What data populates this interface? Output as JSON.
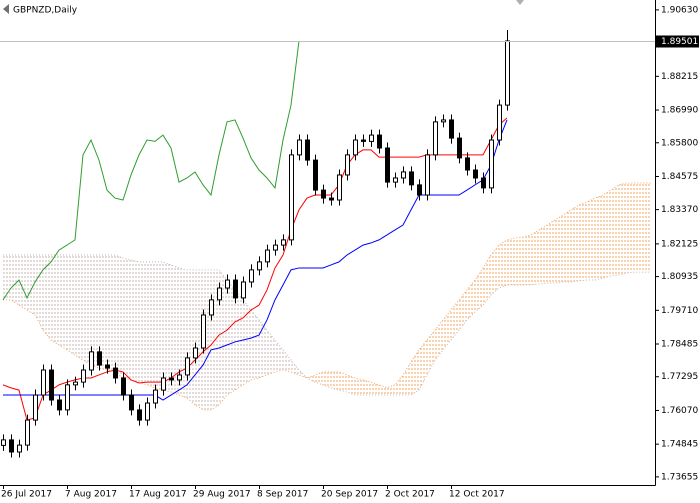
{
  "chart_data": {
    "type": "candlestick",
    "title": "GBPNZD,Daily",
    "categories": [
      "26 Jul 2017",
      null,
      null,
      null,
      null,
      null,
      null,
      null,
      "7 Aug 2017",
      null,
      null,
      null,
      null,
      null,
      null,
      null,
      "17 Aug 2017",
      null,
      null,
      null,
      null,
      null,
      null,
      null,
      "29 Aug 2017",
      null,
      null,
      null,
      null,
      null,
      null,
      null,
      "8 Sep 2017",
      null,
      null,
      null,
      null,
      null,
      null,
      null,
      "20 Sep 2017",
      null,
      null,
      null,
      null,
      null,
      null,
      null,
      "2 Oct 2017",
      null,
      null,
      null,
      null,
      null,
      null,
      null,
      "12 Oct 2017",
      null,
      null,
      null,
      null,
      null,
      null,
      null,
      null,
      null,
      null,
      null,
      null,
      null,
      null,
      null,
      null,
      null,
      null,
      null,
      null,
      null,
      null,
      null,
      null,
      null
    ],
    "open": [
      1.748,
      1.75,
      1.7456,
      1.7481,
      1.7572,
      1.7663,
      1.7754,
      1.7645,
      1.7609,
      1.77,
      1.771,
      1.7754,
      1.782,
      1.7772,
      1.7761,
      1.7725,
      1.7663,
      1.7609,
      1.7572,
      1.7634,
      1.7681,
      1.7725,
      1.7718,
      1.7736,
      1.7798,
      1.7834,
      1.7954,
      1.8009,
      1.8052,
      1.8081,
      1.8016,
      1.8074,
      1.8118,
      1.8147,
      1.819,
      1.8208,
      1.8227,
      1.8536,
      1.859,
      1.8517,
      1.8408,
      1.8379,
      1.8372,
      1.8463,
      1.8536,
      1.859,
      1.8585,
      1.8608,
      1.8561,
      1.8437,
      1.8452,
      1.8474,
      1.8427,
      1.839,
      1.8536,
      1.8656,
      1.8663,
      1.8597,
      1.8525,
      1.8481,
      1.8452,
      1.8416,
      1.859,
      1.8717,
      null,
      null,
      null,
      null,
      null,
      null,
      null,
      null,
      null,
      null,
      null,
      null,
      null,
      null,
      null,
      null,
      null,
      null
    ],
    "high": [
      1.752,
      1.752,
      1.7501,
      1.7592,
      1.7683,
      1.7774,
      1.7774,
      1.7665,
      1.772,
      1.773,
      1.7774,
      1.784,
      1.784,
      1.7792,
      1.7781,
      1.7745,
      1.7683,
      1.7629,
      1.7654,
      1.7701,
      1.7745,
      1.7745,
      1.7756,
      1.7818,
      1.7854,
      1.7974,
      1.8029,
      1.8072,
      1.8101,
      1.8101,
      1.8094,
      1.8138,
      1.8167,
      1.821,
      1.8228,
      1.8247,
      1.8556,
      1.861,
      1.861,
      1.8537,
      1.8428,
      1.8399,
      1.8483,
      1.8556,
      1.861,
      1.861,
      1.8628,
      1.8628,
      1.8581,
      1.8472,
      1.8494,
      1.8494,
      1.8447,
      1.8556,
      1.8676,
      1.8683,
      1.8683,
      1.8617,
      1.8545,
      1.8501,
      1.8472,
      1.861,
      1.8737,
      1.899,
      null,
      null,
      null,
      null,
      null,
      null,
      null,
      null,
      null,
      null,
      null,
      null,
      null,
      null,
      null,
      null,
      null,
      null
    ],
    "low": [
      1.746,
      1.7436,
      1.7436,
      1.7461,
      1.7552,
      1.7643,
      1.7625,
      1.7589,
      1.7589,
      1.768,
      1.769,
      1.7734,
      1.7752,
      1.7741,
      1.7705,
      1.7643,
      1.7589,
      1.7552,
      1.7552,
      1.7614,
      1.7661,
      1.7698,
      1.7698,
      1.7716,
      1.7778,
      1.7814,
      1.7934,
      1.7989,
      1.8032,
      1.7996,
      1.7996,
      1.8054,
      1.8098,
      1.8127,
      1.817,
      1.8188,
      1.8207,
      1.8516,
      1.8497,
      1.8388,
      1.8359,
      1.8352,
      1.8352,
      1.8443,
      1.8516,
      1.8565,
      1.8565,
      1.8541,
      1.8417,
      1.8417,
      1.8432,
      1.8407,
      1.837,
      1.837,
      1.8516,
      1.8636,
      1.8577,
      1.8505,
      1.8461,
      1.8432,
      1.8396,
      1.8396,
      1.857,
      1.8697,
      null,
      null,
      null,
      null,
      null,
      null,
      null,
      null,
      null,
      null,
      null,
      null,
      null,
      null,
      null,
      null,
      null,
      null
    ],
    "close": [
      1.75,
      1.7456,
      1.7481,
      1.7572,
      1.7663,
      1.7754,
      1.7645,
      1.7609,
      1.77,
      1.771,
      1.7754,
      1.782,
      1.7772,
      1.7761,
      1.7725,
      1.7663,
      1.7609,
      1.7572,
      1.7634,
      1.7681,
      1.7725,
      1.7718,
      1.7736,
      1.7798,
      1.7834,
      1.7954,
      1.8009,
      1.8052,
      1.8081,
      1.8016,
      1.8074,
      1.8118,
      1.8147,
      1.819,
      1.8208,
      1.8227,
      1.8536,
      1.859,
      1.8517,
      1.8408,
      1.8379,
      1.8372,
      1.8463,
      1.8536,
      1.859,
      1.8585,
      1.8608,
      1.8561,
      1.8437,
      1.8452,
      1.8474,
      1.8427,
      1.839,
      1.8536,
      1.8656,
      1.8663,
      1.8597,
      1.8525,
      1.8481,
      1.8452,
      1.8416,
      1.859,
      1.8717,
      1.895,
      null,
      null,
      null,
      null,
      null,
      null,
      null,
      null,
      null,
      null,
      null,
      null,
      null,
      null,
      null,
      null,
      null,
      null
    ],
    "up_color": "#ffffff",
    "down_color": "#000000",
    "lines": [
      {
        "color": "#ff0000",
        "values": [
          1.77,
          1.7689,
          1.7681,
          1.7572,
          1.758,
          1.7663,
          1.7681,
          1.77,
          1.771,
          1.7718,
          1.7725,
          1.7725,
          1.7736,
          1.7747,
          1.7754,
          1.7747,
          1.7718,
          1.7707,
          1.771,
          1.771,
          1.771,
          1.7725,
          1.7747,
          1.7761,
          1.779,
          1.782,
          1.7845,
          1.7881,
          1.7899,
          1.7929,
          1.7943,
          1.7972,
          1.799,
          1.8045,
          1.8125,
          1.8172,
          1.8263,
          1.8336,
          1.8379,
          1.839,
          1.839,
          1.839,
          1.8427,
          1.8499,
          1.8536,
          1.8554,
          1.8554,
          1.8528,
          1.8528,
          1.8528,
          1.8528,
          1.8528,
          1.8528,
          1.8536,
          1.8536,
          1.8536,
          1.8536,
          1.8536,
          1.8536,
          1.8536,
          1.8536,
          1.859,
          1.8645,
          1.867,
          null,
          null,
          null,
          null,
          null,
          null,
          null,
          null,
          null,
          null,
          null,
          null,
          null,
          null,
          null,
          null,
          null,
          null
        ]
      },
      {
        "color": "#0000ff",
        "values": [
          1.7663,
          1.7663,
          1.7663,
          1.7663,
          1.7663,
          1.7663,
          1.7663,
          1.7663,
          1.7663,
          1.7663,
          1.7663,
          1.7663,
          1.7663,
          1.7663,
          1.7663,
          1.7663,
          1.7663,
          1.7663,
          1.7663,
          1.7663,
          1.7645,
          1.7663,
          1.7681,
          1.77,
          1.7736,
          1.7772,
          1.7827,
          1.7834,
          1.7845,
          1.7856,
          1.7863,
          1.787,
          1.7881,
          1.7936,
          1.8009,
          1.8063,
          1.8118,
          1.8125,
          1.8125,
          1.8125,
          1.8125,
          1.8136,
          1.8147,
          1.8172,
          1.819,
          1.8208,
          1.8216,
          1.8227,
          1.8245,
          1.8263,
          1.8281,
          1.8336,
          1.839,
          1.839,
          1.839,
          1.839,
          1.839,
          1.839,
          1.8408,
          1.8427,
          1.8445,
          1.8499,
          1.859,
          1.8663,
          null,
          null,
          null,
          null,
          null,
          null,
          null,
          null,
          null,
          null,
          null,
          null,
          null,
          null,
          null,
          null,
          null,
          null
        ]
      },
      {
        "color": "#2e9e2e",
        "values": [
          1.8009,
          1.8052,
          1.8081,
          1.8016,
          1.8074,
          1.8118,
          1.8147,
          1.819,
          1.8208,
          1.8227,
          1.8536,
          1.859,
          1.8517,
          1.8408,
          1.8379,
          1.8372,
          1.8463,
          1.8536,
          1.859,
          1.8585,
          1.8608,
          1.8561,
          1.8437,
          1.8452,
          1.8474,
          1.8427,
          1.839,
          1.8536,
          1.8656,
          1.8663,
          1.8597,
          1.8525,
          1.8481,
          1.8452,
          1.8416,
          1.859,
          1.8717,
          1.895,
          null,
          null,
          null,
          null,
          null,
          null,
          null,
          null,
          null,
          null,
          null,
          null,
          null,
          null,
          null,
          null,
          null,
          null,
          null,
          null,
          null,
          null,
          null,
          null,
          null,
          null,
          null,
          null,
          null,
          null,
          null,
          null,
          null,
          null,
          null,
          null,
          null,
          null,
          null,
          null,
          null,
          null,
          null,
          null
        ]
      }
    ],
    "cloud": {
      "span_a": [
        1.8009,
        1.8009,
        1.799,
        1.7972,
        1.7954,
        1.7899,
        1.7863,
        1.7845,
        1.7827,
        1.7809,
        1.779,
        1.7772,
        1.7761,
        1.7754,
        1.7747,
        1.7725,
        1.7718,
        1.7707,
        1.77,
        1.7689,
        1.7681,
        1.7674,
        1.7663,
        1.7652,
        1.7627,
        1.7609,
        1.7609,
        1.7627,
        1.7663,
        1.7681,
        1.77,
        1.7718,
        1.7725,
        1.7736,
        1.7747,
        1.7754,
        1.7747,
        1.7736,
        1.7725,
        1.7736,
        1.7747,
        1.7747,
        1.7747,
        1.7736,
        1.7725,
        1.7718,
        1.771,
        1.77,
        1.7689,
        1.77,
        1.7736,
        1.7783,
        1.7827,
        1.7863,
        1.7899,
        1.7936,
        1.7972,
        1.8009,
        1.8045,
        1.8081,
        1.8125,
        1.8172,
        1.8208,
        1.8227,
        1.8234,
        1.8238,
        1.8245,
        1.8263,
        1.8281,
        1.8299,
        1.8317,
        1.8336,
        1.8354,
        1.8365,
        1.8379,
        1.839,
        1.8408,
        1.8427,
        1.8434,
        1.8434,
        1.8434,
        1.8434
      ],
      "span_b": [
        1.8172,
        1.8172,
        1.8172,
        1.8172,
        1.8172,
        1.8172,
        1.8172,
        1.8172,
        1.8172,
        1.8172,
        1.8172,
        1.8172,
        1.8172,
        1.8172,
        1.8172,
        1.8161,
        1.8154,
        1.8147,
        1.8147,
        1.8147,
        1.8147,
        1.8136,
        1.8125,
        1.8118,
        1.8118,
        1.8118,
        1.8118,
        1.8118,
        1.8081,
        1.8045,
        1.8009,
        1.7972,
        1.7936,
        1.7899,
        1.7863,
        1.7827,
        1.779,
        1.7754,
        1.7725,
        1.771,
        1.77,
        1.7689,
        1.7681,
        1.7674,
        1.7663,
        1.7663,
        1.7663,
        1.7663,
        1.7663,
        1.7663,
        1.7663,
        1.7663,
        1.7681,
        1.7736,
        1.779,
        1.7827,
        1.7863,
        1.7899,
        1.7936,
        1.7965,
        1.799,
        1.8027,
        1.8052,
        1.8063,
        1.8063,
        1.8063,
        1.8063,
        1.8067,
        1.807,
        1.807,
        1.8074,
        1.8074,
        1.8078,
        1.8081,
        1.8081,
        1.8088,
        1.8096,
        1.8099,
        1.8107,
        1.811,
        1.811,
        1.811
      ],
      "up_color": "#f4a460",
      "down_color": "#c8b4b4"
    },
    "current_price": 1.89501,
    "ylim": [
      1.7336,
      1.9099
    ],
    "yticks": [
      {
        "value": 1.9063,
        "label": "1.90630"
      },
      1.88215,
      {
        "value": 1.8699,
        "label": "1.86990"
      },
      {
        "value": 1.858,
        "label": "1.85800"
      },
      1.84575,
      {
        "value": 1.8337,
        "label": "1.83370"
      },
      1.82125,
      1.80935,
      {
        "value": 1.7971,
        "label": "1.79710"
      },
      1.78485,
      1.77295,
      {
        "value": 1.7607,
        "label": "1.76070"
      },
      1.74845,
      1.73655
    ]
  }
}
